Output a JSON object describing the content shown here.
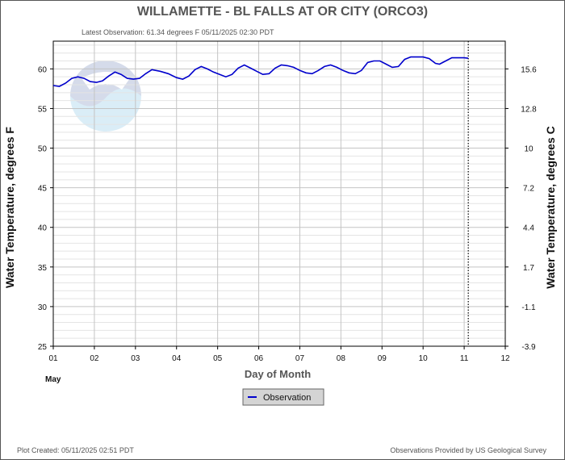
{
  "chart_data": {
    "type": "line",
    "title": "WILLAMETTE - BL FALLS AT OR CITY  (ORCO3)",
    "subtitle": "Latest Observation: 61.34 degrees F 05/11/2025 02:30 PDT",
    "xlabel": "Day of Month",
    "month_label": "May",
    "ylabel_left": "Water Temperature, degrees F",
    "ylabel_right": "Water Temperature, degrees C",
    "xlim": [
      1,
      12
    ],
    "ylim": [
      25,
      63.5
    ],
    "x_ticks": [
      "01",
      "02",
      "03",
      "04",
      "05",
      "06",
      "07",
      "08",
      "09",
      "10",
      "11",
      "12"
    ],
    "y_ticks_left": [
      "25",
      "30",
      "35",
      "40",
      "45",
      "50",
      "55",
      "60"
    ],
    "y_ticks_right": [
      "-3.9",
      "-1.1",
      "1.7",
      "4.4",
      "7.2",
      "10",
      "12.8",
      "15.6"
    ],
    "grid": true,
    "latest_observation_day": 11.1,
    "watermark": "NOAA",
    "series": [
      {
        "name": "Observation",
        "color": "#0000cc",
        "x": [
          1.0,
          1.15,
          1.3,
          1.45,
          1.6,
          1.75,
          1.9,
          2.05,
          2.2,
          2.35,
          2.5,
          2.65,
          2.8,
          2.95,
          3.1,
          3.25,
          3.4,
          3.6,
          3.8,
          4.0,
          4.15,
          4.3,
          4.45,
          4.6,
          4.75,
          4.9,
          5.05,
          5.2,
          5.35,
          5.5,
          5.65,
          5.8,
          5.95,
          6.1,
          6.25,
          6.4,
          6.55,
          6.7,
          6.85,
          7.0,
          7.15,
          7.3,
          7.45,
          7.6,
          7.75,
          7.9,
          8.05,
          8.2,
          8.35,
          8.5,
          8.65,
          8.8,
          8.95,
          9.1,
          9.25,
          9.4,
          9.55,
          9.7,
          9.85,
          10.0,
          10.15,
          10.3,
          10.4,
          10.55,
          10.7,
          10.85,
          11.0,
          11.1
        ],
        "values": [
          57.9,
          57.8,
          58.2,
          58.8,
          59.0,
          58.8,
          58.4,
          58.3,
          58.5,
          59.1,
          59.6,
          59.3,
          58.8,
          58.7,
          58.8,
          59.4,
          59.9,
          59.7,
          59.4,
          58.9,
          58.7,
          59.1,
          59.9,
          60.3,
          60.0,
          59.6,
          59.3,
          59.0,
          59.3,
          60.1,
          60.5,
          60.1,
          59.7,
          59.3,
          59.4,
          60.1,
          60.5,
          60.4,
          60.2,
          59.8,
          59.5,
          59.4,
          59.8,
          60.3,
          60.5,
          60.2,
          59.8,
          59.5,
          59.4,
          59.8,
          60.8,
          61.0,
          61.0,
          60.6,
          60.2,
          60.3,
          61.2,
          61.5,
          61.5,
          61.5,
          61.3,
          60.7,
          60.6,
          61.0,
          61.4,
          61.4,
          61.4,
          61.34
        ]
      }
    ]
  },
  "legend": {
    "label": "Observation"
  },
  "footer": {
    "left": "Plot Created: 05/11/2025 02:51 PDT",
    "right": "Observations Provided by US Geological Survey"
  }
}
